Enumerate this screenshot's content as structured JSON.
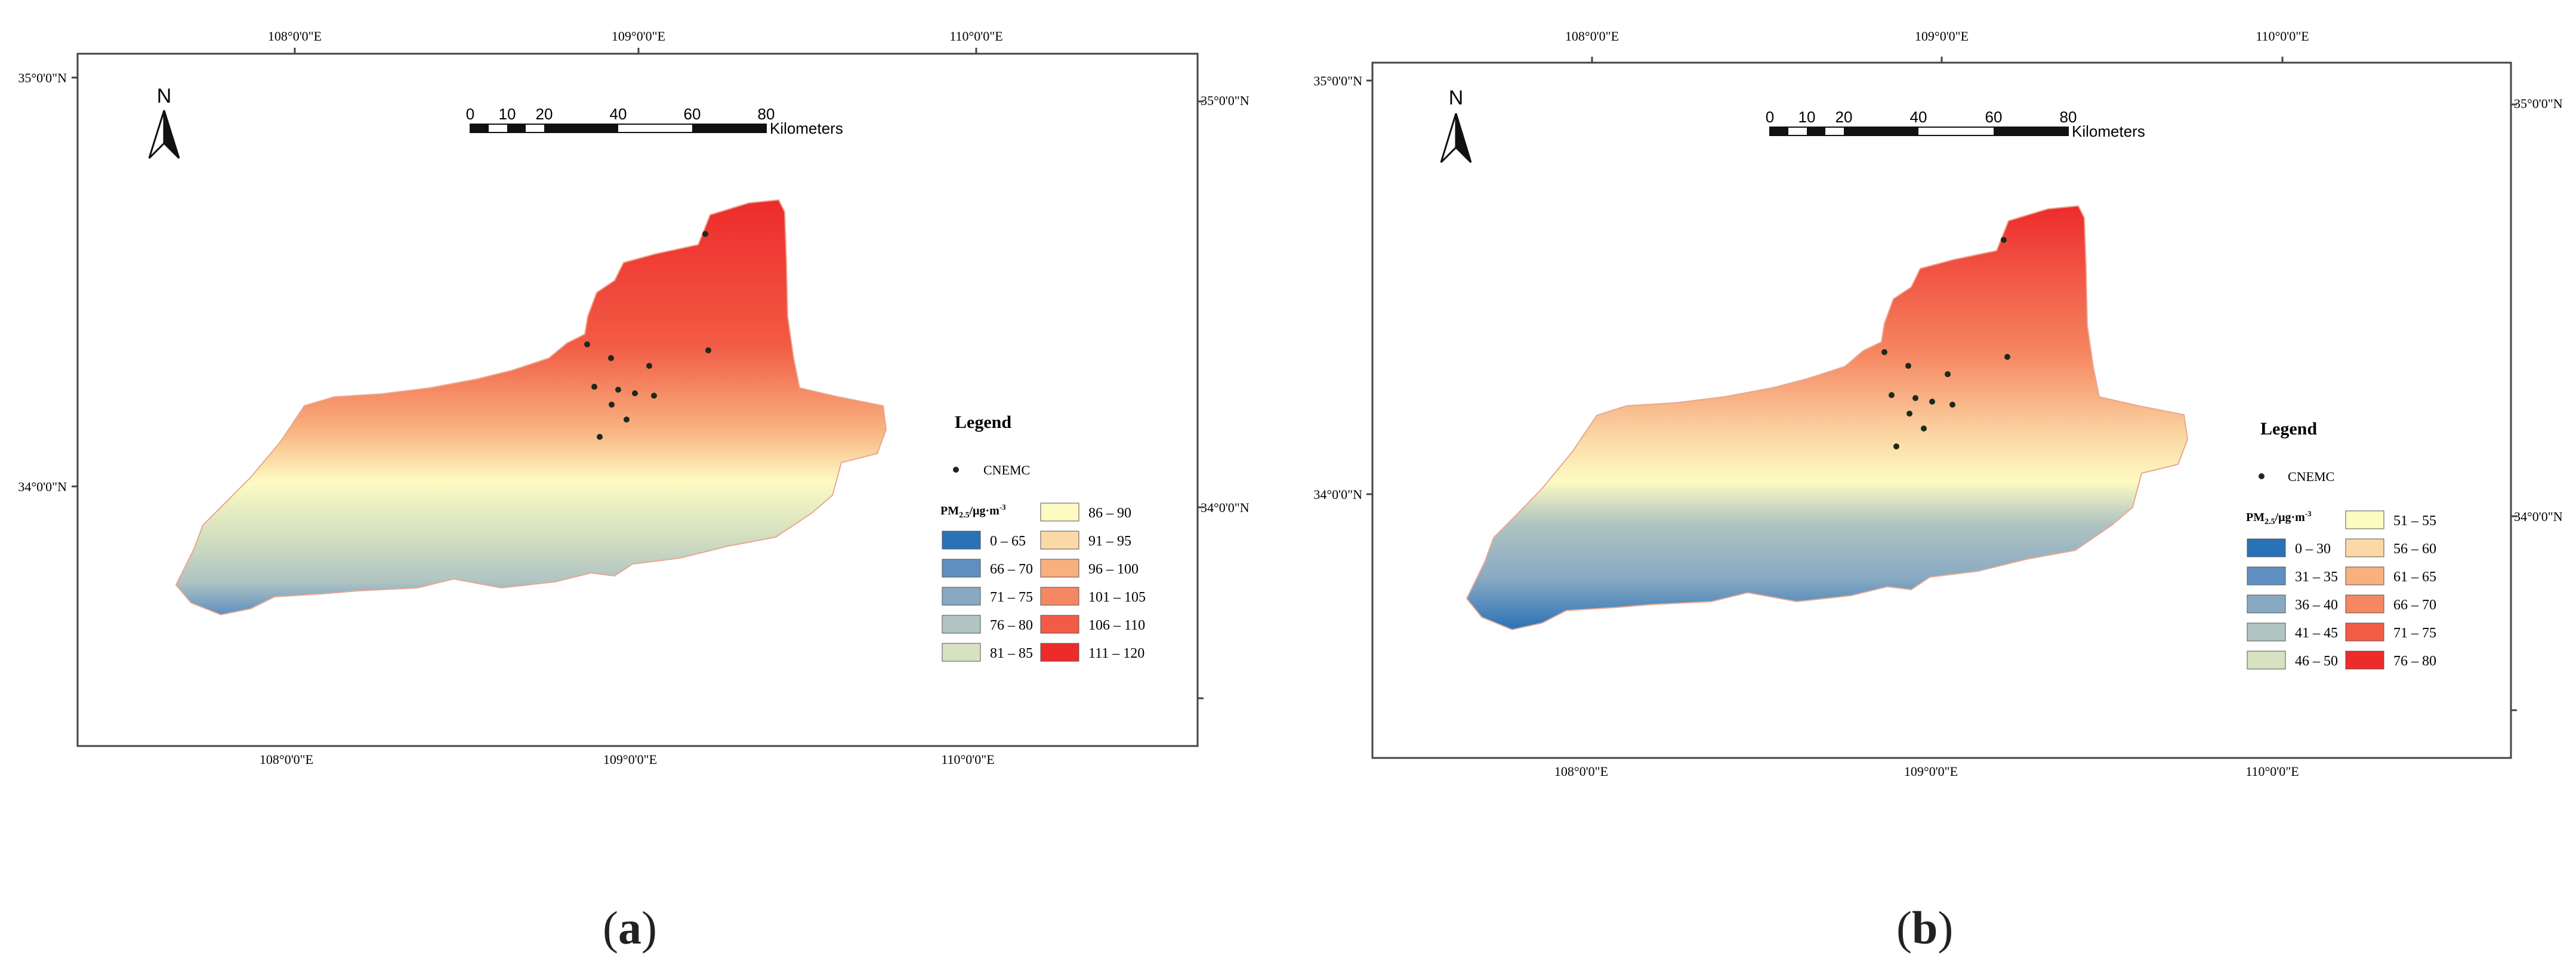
{
  "panels": [
    {
      "id": "a",
      "caption_letter": "a",
      "grid_labels": {
        "top": [
          "108°0'0\"E",
          "109°0'0\"E",
          "110°0'0\"E"
        ],
        "bottom": [
          "108°0'0\"E",
          "109°0'0\"E",
          "110°0'0\"E"
        ],
        "left": [
          "35°0'0\"N",
          "34°0'0\"N"
        ],
        "right": [
          "35°0'0\"N",
          "34°0'0\"N"
        ]
      },
      "north_arrow": "N",
      "scale_bar": {
        "ticks": [
          "0",
          "10",
          "20",
          "40",
          "60",
          "80"
        ],
        "unit": "Kilometers"
      },
      "legend": {
        "title": "Legend",
        "point_label": "CNEMC",
        "pm_label_main": "PM",
        "pm_label_sub": "2.5",
        "pm_label_unit": "/μg·m",
        "pm_label_sup": "-3",
        "classes": [
          {
            "label": "0 – 65",
            "color": "#2a72b8"
          },
          {
            "label": "66 – 70",
            "color": "#5e8fc0"
          },
          {
            "label": "71 – 75",
            "color": "#87a9c2"
          },
          {
            "label": "76 – 80",
            "color": "#b0c4c2"
          },
          {
            "label": "81 – 85",
            "color": "#d6e2c0"
          },
          {
            "label": "86 – 90",
            "color": "#fdfbc2"
          },
          {
            "label": "91 – 95",
            "color": "#fbd9a6"
          },
          {
            "label": "96 – 100",
            "color": "#f8b07e"
          },
          {
            "label": "101 – 105",
            "color": "#f58762"
          },
          {
            "label": "106 – 110",
            "color": "#f25b45"
          },
          {
            "label": "111 – 120",
            "color": "#ee2b2b"
          }
        ]
      }
    },
    {
      "id": "b",
      "caption_letter": "b",
      "grid_labels": {
        "top": [
          "108°0'0\"E",
          "109°0'0\"E",
          "110°0'0\"E"
        ],
        "bottom": [
          "108°0'0\"E",
          "109°0'0\"E",
          "110°0'0\"E"
        ],
        "left": [
          "35°0'0\"N",
          "34°0'0\"N"
        ],
        "right": [
          "35°0'0\"N",
          "34°0'0\"N"
        ]
      },
      "north_arrow": "N",
      "scale_bar": {
        "ticks": [
          "0",
          "10",
          "20",
          "40",
          "60",
          "80"
        ],
        "unit": "Kilometers"
      },
      "legend": {
        "title": "Legend",
        "point_label": "CNEMC",
        "pm_label_main": "PM",
        "pm_label_sub": "2.5",
        "pm_label_unit": "/μg·m",
        "pm_label_sup": "-3",
        "classes": [
          {
            "label": "0 – 30",
            "color": "#2a72b8"
          },
          {
            "label": "31 – 35",
            "color": "#5e8fc0"
          },
          {
            "label": "36 – 40",
            "color": "#87a9c2"
          },
          {
            "label": "41 – 45",
            "color": "#b0c4c2"
          },
          {
            "label": "46 – 50",
            "color": "#d6e2c0"
          },
          {
            "label": "51 – 55",
            "color": "#fdfbc2"
          },
          {
            "label": "56 – 60",
            "color": "#fbd9a6"
          },
          {
            "label": "61 – 65",
            "color": "#f8b07e"
          },
          {
            "label": "66 – 70",
            "color": "#f58762"
          },
          {
            "label": "71 – 75",
            "color": "#f25b45"
          },
          {
            "label": "76 – 80",
            "color": "#ee2b2b"
          }
        ]
      }
    }
  ]
}
